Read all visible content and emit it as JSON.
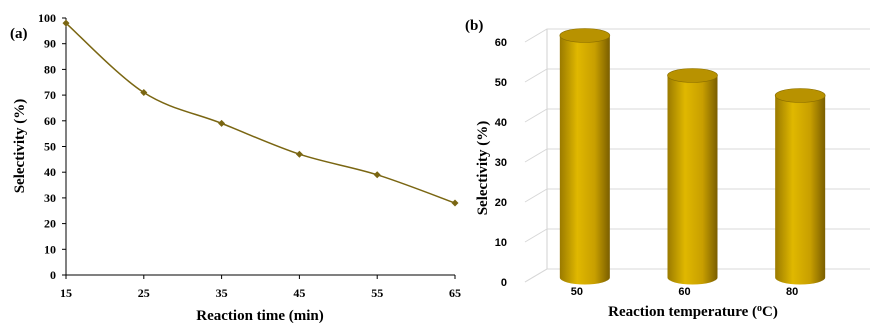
{
  "chart_data": [
    {
      "panel_label": "(a)",
      "type": "line",
      "xlabel": "Reaction time (min)",
      "ylabel": "Selectivity (%)",
      "x": [
        15,
        25,
        35,
        45,
        55,
        65
      ],
      "values": [
        98,
        71,
        59,
        47,
        39,
        28
      ],
      "xlim": [
        15,
        65
      ],
      "ylim": [
        0,
        100
      ],
      "xticks": [
        "15",
        "25",
        "35",
        "45",
        "55",
        "65"
      ],
      "yticks": [
        "0",
        "10",
        "20",
        "30",
        "40",
        "50",
        "60",
        "70",
        "80",
        "90",
        "100"
      ],
      "color": "#7a6612",
      "grid": false,
      "smooth": true
    },
    {
      "panel_label": "(b)",
      "type": "bar",
      "style": "3d-cylinder",
      "xlabel": "Reaction temperature (",
      "xlabel_sup": "o",
      "xlabel_tail": "C)",
      "ylabel": "Selectivity (%)",
      "categories": [
        "50",
        "60",
        "80"
      ],
      "values": [
        60,
        50,
        45
      ],
      "ylim": [
        0,
        60
      ],
      "yticks": [
        "0",
        "10",
        "20",
        "30",
        "40",
        "50",
        "60"
      ],
      "color": "#c8a200",
      "grid": true
    }
  ]
}
